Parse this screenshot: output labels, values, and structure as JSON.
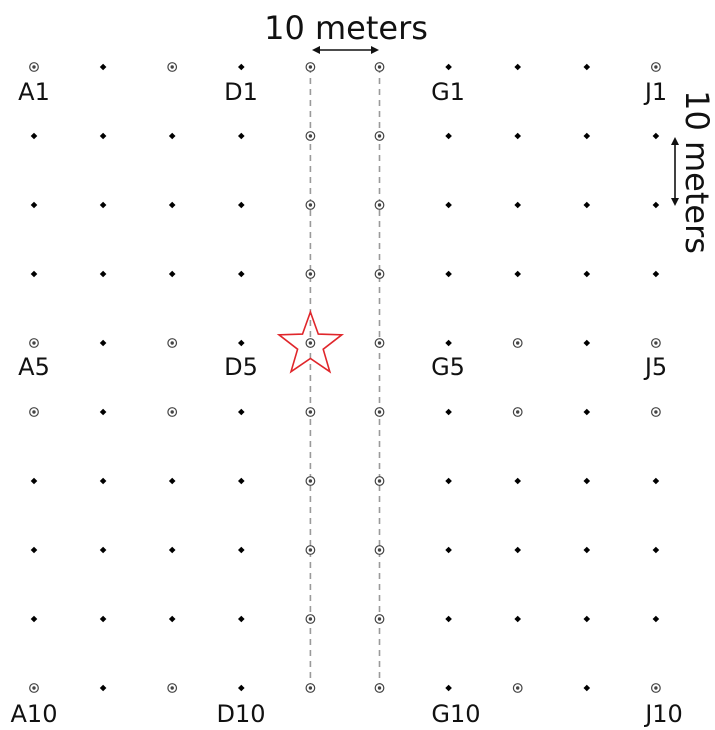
{
  "scale": {
    "horizontal_label": "10 meters",
    "vertical_label": "10 meters"
  },
  "grid": {
    "columns": [
      "A",
      "B",
      "C",
      "D",
      "E",
      "F",
      "G",
      "H",
      "I",
      "J"
    ],
    "rows": [
      1,
      2,
      3,
      4,
      5,
      6,
      7,
      8,
      9,
      10
    ],
    "label_text": {
      "A1": "A1",
      "D1": "D1",
      "G1": "G1",
      "J1": "J1",
      "A5": "A5",
      "D5": "D5",
      "G5": "G5",
      "J5": "J5",
      "A10": "A10",
      "D10": "D10",
      "G10": "G10",
      "J10": "J10"
    },
    "ring_markers": [
      "A1",
      "C1",
      "E1",
      "F1",
      "J1",
      "E2",
      "F2",
      "E3",
      "F3",
      "E4",
      "F4",
      "A5",
      "C5",
      "E5",
      "F5",
      "H5",
      "J5",
      "A6",
      "C6",
      "E6",
      "F6",
      "H6",
      "J6",
      "E7",
      "F7",
      "E8",
      "F8",
      "E9",
      "F9",
      "A10",
      "C10",
      "E10",
      "F10",
      "H10",
      "J10"
    ],
    "transect_columns": [
      "E",
      "F"
    ],
    "star_marker": "E5"
  },
  "colors": {
    "dot": "#000000",
    "ring": "#444444",
    "transect": "#9a9a9a",
    "star": "#e0262b"
  }
}
